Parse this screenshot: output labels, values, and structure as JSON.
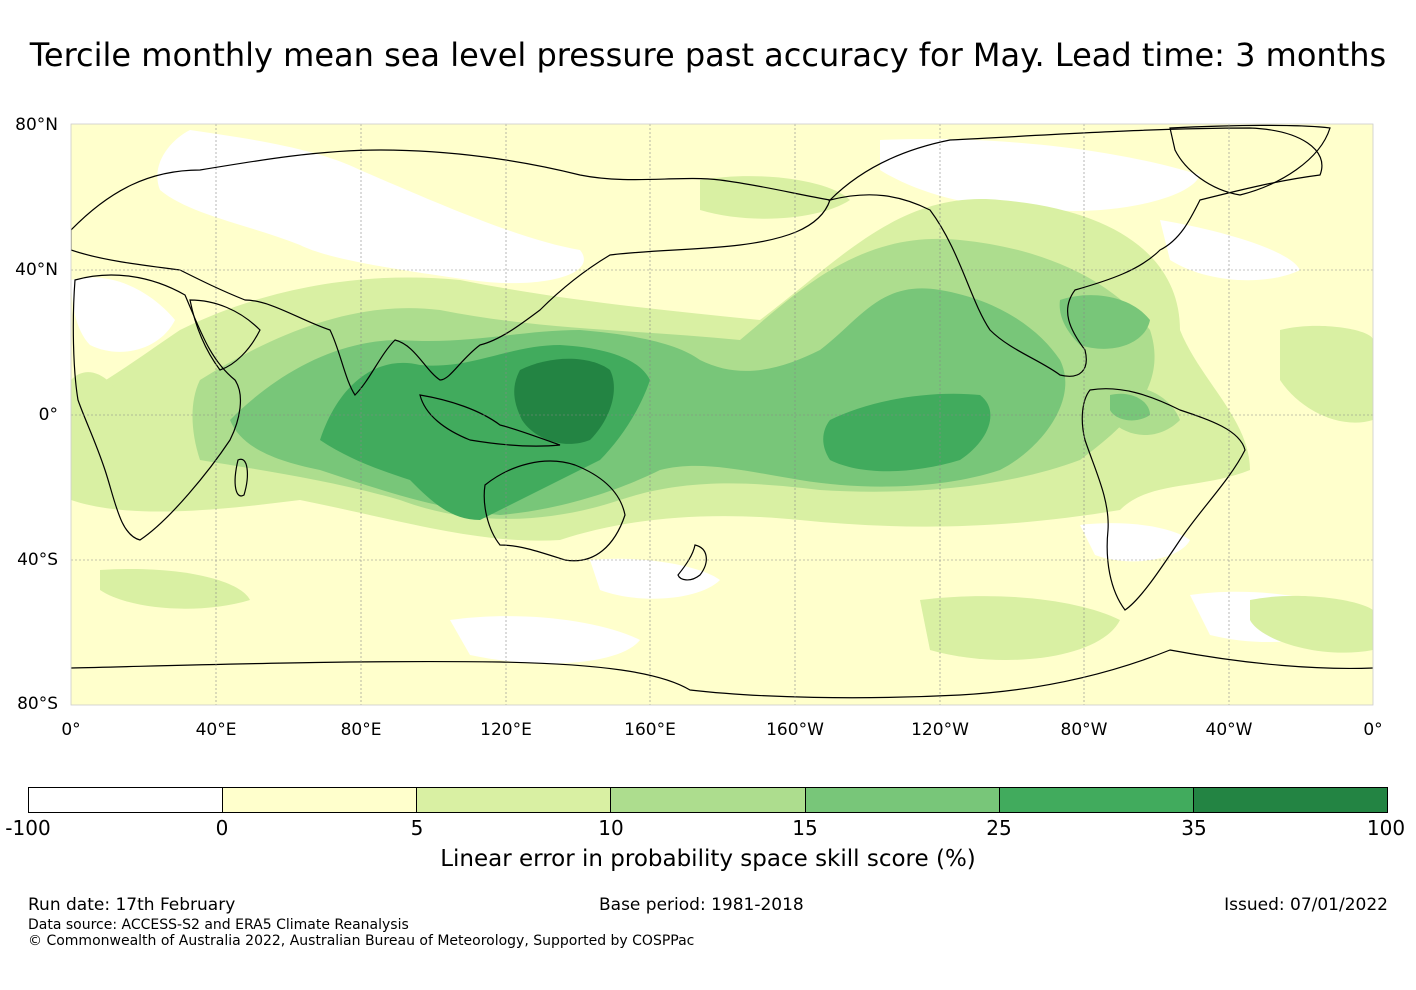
{
  "title": "Tercile monthly mean sea level pressure past accuracy for May. Lead time: 3 months",
  "map": {
    "lat_labels": [
      "80°N",
      "40°N",
      "0°",
      "40°S",
      "80°S"
    ],
    "lon_labels": [
      "0°",
      "40°E",
      "80°E",
      "120°E",
      "160°E",
      "160°W",
      "120°W",
      "80°W",
      "40°W",
      "0°"
    ],
    "grid_color": "#888888",
    "land_outline_color": "#000000",
    "background_fill": "#ffffcc"
  },
  "colorbar": {
    "ticks": [
      "-100",
      "0",
      "5",
      "10",
      "15",
      "25",
      "35",
      "100"
    ],
    "colors": [
      "#ffffff",
      "#ffffcc",
      "#d9f0a3",
      "#addd8e",
      "#78c679",
      "#41ab5d",
      "#238443"
    ],
    "label": "Linear error in probability space skill score (%)"
  },
  "footer": {
    "run_date": "Run date: 17th February",
    "base_period": "Base period: 1981-2018",
    "issued": "Issued: 07/01/2022",
    "data_source": "Data source: ACCESS-S2 and ERA5 Climate Reanalysis",
    "copyright": "© Commonwealth of Australia 2022, Australian Bureau of Meteorology, Supported by COSPPac"
  }
}
